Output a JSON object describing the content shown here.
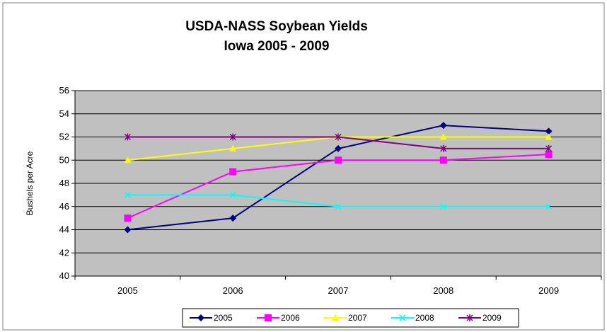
{
  "chart_data": {
    "type": "line",
    "title": "USDA-NASS Soybean Yields",
    "subtitle": "Iowa 2005 - 2009",
    "y_label": "Bushels per Acre",
    "categories": [
      "2005",
      "2006",
      "2007",
      "2008",
      "2009"
    ],
    "series": [
      {
        "name": "2005",
        "color": "#000080",
        "marker": "diamond",
        "values": [
          44,
          45,
          51,
          53,
          52.5
        ]
      },
      {
        "name": "2006",
        "color": "#ff00ff",
        "marker": "square",
        "values": [
          45,
          49,
          50,
          50,
          50.5
        ]
      },
      {
        "name": "2007",
        "color": "#ffff00",
        "marker": "triangle",
        "values": [
          50,
          51,
          52,
          52,
          52
        ]
      },
      {
        "name": "2008",
        "color": "#00ffff",
        "marker": "x",
        "values": [
          47,
          47,
          46,
          46,
          46
        ]
      },
      {
        "name": "2009",
        "color": "#800080",
        "marker": "star",
        "values": [
          52,
          52,
          52,
          51,
          51
        ]
      }
    ],
    "ylim": [
      40,
      56
    ],
    "yticks": [
      40,
      42,
      44,
      46,
      48,
      50,
      52,
      54,
      56
    ],
    "grid": true,
    "legend": "bottom",
    "plot_background": "#c0c0c0"
  }
}
